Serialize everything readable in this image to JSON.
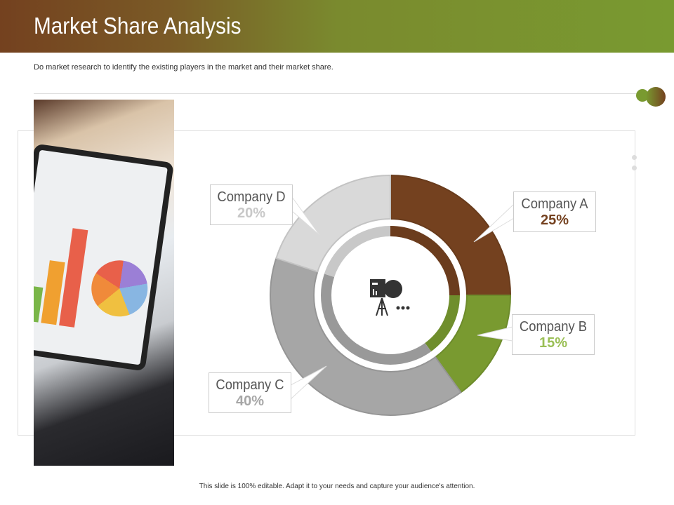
{
  "header": {
    "title": "Market Share Analysis"
  },
  "subtitle": "Do market research to identify the existing players in the market and their market share.",
  "footer": "This slide is 100% editable. Adapt it to your needs and capture your audience's attention.",
  "center_icon": "presentation-chart-icon",
  "chart_data": {
    "type": "pie",
    "style": "donut",
    "categories": [
      "Company A",
      "Company B",
      "Company C",
      "Company D"
    ],
    "values": [
      25,
      15,
      40,
      20
    ],
    "labels": [
      "25%",
      "15%",
      "40%",
      "20%"
    ],
    "colors": [
      "#74411f",
      "#799a30",
      "#a6a6a6",
      "#d9d9d9"
    ],
    "label_colors": [
      "#74411f",
      "#9abf55",
      "#a6a6a6",
      "#c8c8c8"
    ]
  }
}
